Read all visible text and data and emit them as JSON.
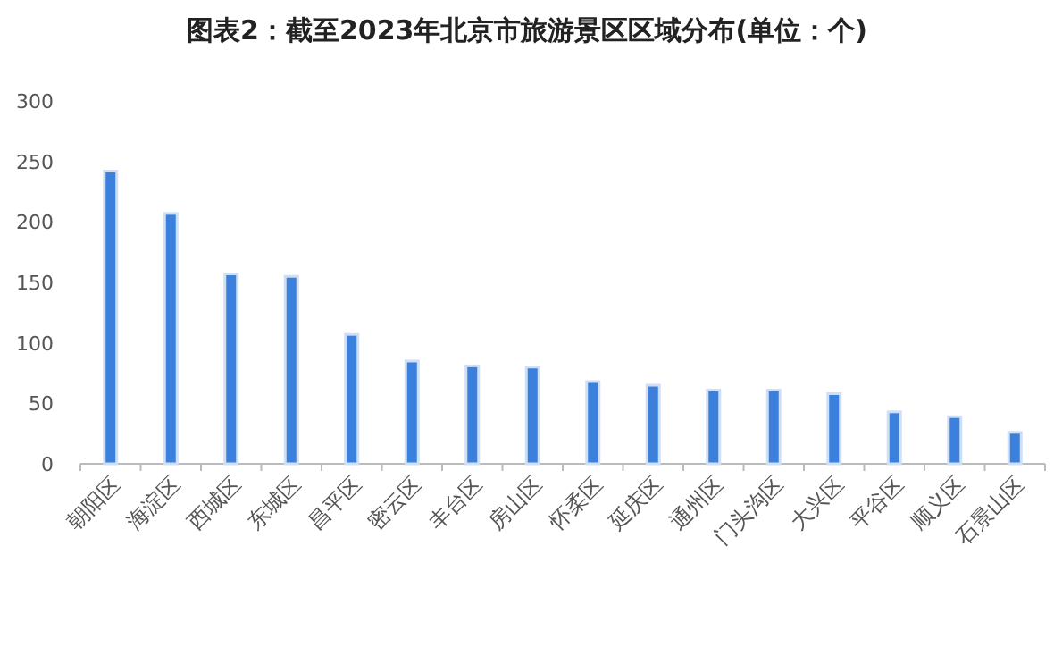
{
  "chart_data": {
    "type": "bar",
    "title": "图表2：截至2023年北京市旅游景区区域分布(单位：个)",
    "categories": [
      "朝阳区",
      "海淀区",
      "西城区",
      "东城区",
      "昌平区",
      "密云区",
      "丰台区",
      "房山区",
      "怀柔区",
      "延庆区",
      "通州区",
      "门头沟区",
      "大兴区",
      "平谷区",
      "顺义区",
      "石景山区"
    ],
    "values": [
      242,
      207,
      157,
      155,
      107,
      85,
      81,
      80,
      68,
      65,
      61,
      61,
      58,
      43,
      39,
      26
    ],
    "color": "#3a80dc",
    "ylim": [
      0,
      300
    ],
    "yticks": [
      0,
      50,
      100,
      150,
      200,
      250,
      300
    ]
  }
}
